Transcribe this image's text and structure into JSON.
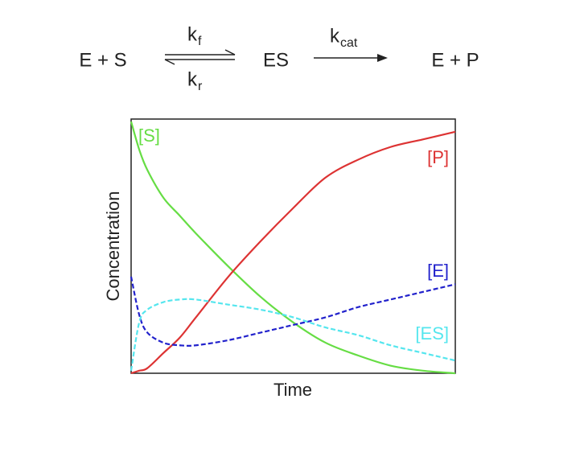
{
  "reaction": {
    "substrate_side": "E + S",
    "kf_symbol": "k",
    "kf_subscript": "f",
    "kr_symbol": "k",
    "kr_subscript": "r",
    "complex": "ES",
    "kcat_symbol": "k",
    "kcat_subscript": "cat",
    "product_side": "E + P"
  },
  "chart_data": {
    "type": "line",
    "xlabel": "Time",
    "ylabel": "Concentration",
    "x": [
      0,
      0.25,
      0.5,
      1,
      1.5,
      2,
      3,
      4,
      5,
      6,
      7,
      8,
      9,
      10
    ],
    "xlim": [
      0,
      10
    ],
    "ylim": [
      0,
      1
    ],
    "series": [
      {
        "name": "[S]",
        "color": "#66dd44",
        "style": "solid",
        "values": [
          0.99,
          0.88,
          0.8,
          0.69,
          0.62,
          0.55,
          0.42,
          0.3,
          0.2,
          0.12,
          0.07,
          0.03,
          0.01,
          0.0
        ]
      },
      {
        "name": "[P]",
        "color": "#dd3333",
        "style": "solid",
        "values": [
          0,
          0.01,
          0.02,
          0.08,
          0.14,
          0.22,
          0.38,
          0.52,
          0.65,
          0.77,
          0.84,
          0.89,
          0.92,
          0.95
        ]
      },
      {
        "name": "[E]",
        "color": "#2222cc",
        "style": "dashed",
        "values": [
          0.38,
          0.23,
          0.16,
          0.12,
          0.11,
          0.11,
          0.13,
          0.16,
          0.19,
          0.22,
          0.26,
          0.29,
          0.32,
          0.35
        ]
      },
      {
        "name": "[ES]",
        "color": "#55e6ee",
        "style": "dashed",
        "values": [
          0.01,
          0.2,
          0.25,
          0.28,
          0.29,
          0.29,
          0.27,
          0.25,
          0.22,
          0.18,
          0.15,
          0.11,
          0.08,
          0.05
        ]
      }
    ]
  }
}
